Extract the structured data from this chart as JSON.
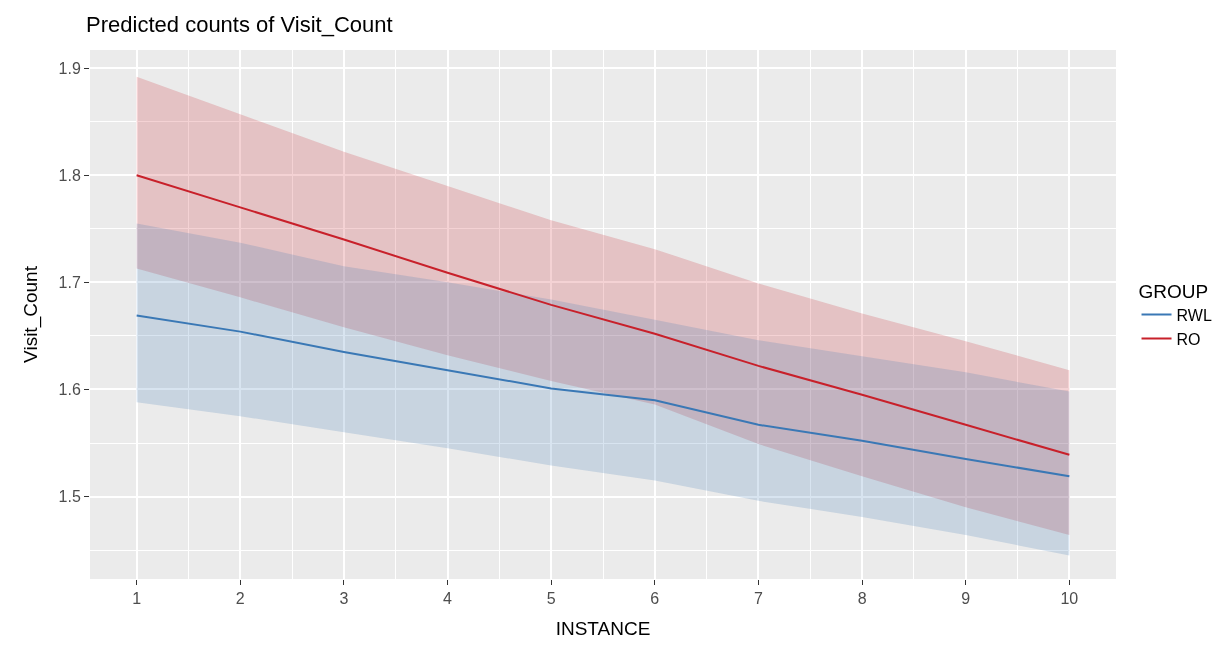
{
  "chart_data": {
    "type": "line",
    "title": "Predicted counts of Visit_Count",
    "xlabel": "INSTANCE",
    "ylabel": "Visit_Count",
    "legend_title": "GROUP",
    "x": [
      1,
      2,
      3,
      4,
      5,
      6,
      7,
      8,
      9,
      10
    ],
    "series": [
      {
        "name": "RO",
        "color": "#c8202a",
        "values": [
          1.8,
          1.77,
          1.74,
          1.709,
          1.679,
          1.652,
          1.622,
          1.595,
          1.567,
          1.539
        ],
        "lower": [
          1.713,
          1.686,
          1.658,
          1.632,
          1.608,
          1.586,
          1.549,
          1.519,
          1.49,
          1.464
        ],
        "upper": [
          1.892,
          1.857,
          1.822,
          1.79,
          1.758,
          1.731,
          1.699,
          1.671,
          1.645,
          1.618
        ]
      },
      {
        "name": "RWL",
        "color": "#3a78b5",
        "values": [
          1.669,
          1.654,
          1.635,
          1.618,
          1.601,
          1.59,
          1.567,
          1.552,
          1.535,
          1.519
        ],
        "lower": [
          1.588,
          1.575,
          1.56,
          1.545,
          1.529,
          1.515,
          1.496,
          1.481,
          1.464,
          1.445
        ],
        "upper": [
          1.755,
          1.737,
          1.715,
          1.7,
          1.684,
          1.665,
          1.646,
          1.631,
          1.616,
          1.598
        ]
      }
    ],
    "xlim": [
      0.55,
      10.45
    ],
    "xticks": [
      1,
      2,
      3,
      4,
      5,
      6,
      7,
      8,
      9,
      10
    ],
    "ylim": [
      1.423,
      1.917
    ],
    "yticks": [
      1.5,
      1.6,
      1.7,
      1.8,
      1.9
    ],
    "grid": true,
    "legend": "right",
    "line_style": "solid",
    "marker": "none"
  }
}
